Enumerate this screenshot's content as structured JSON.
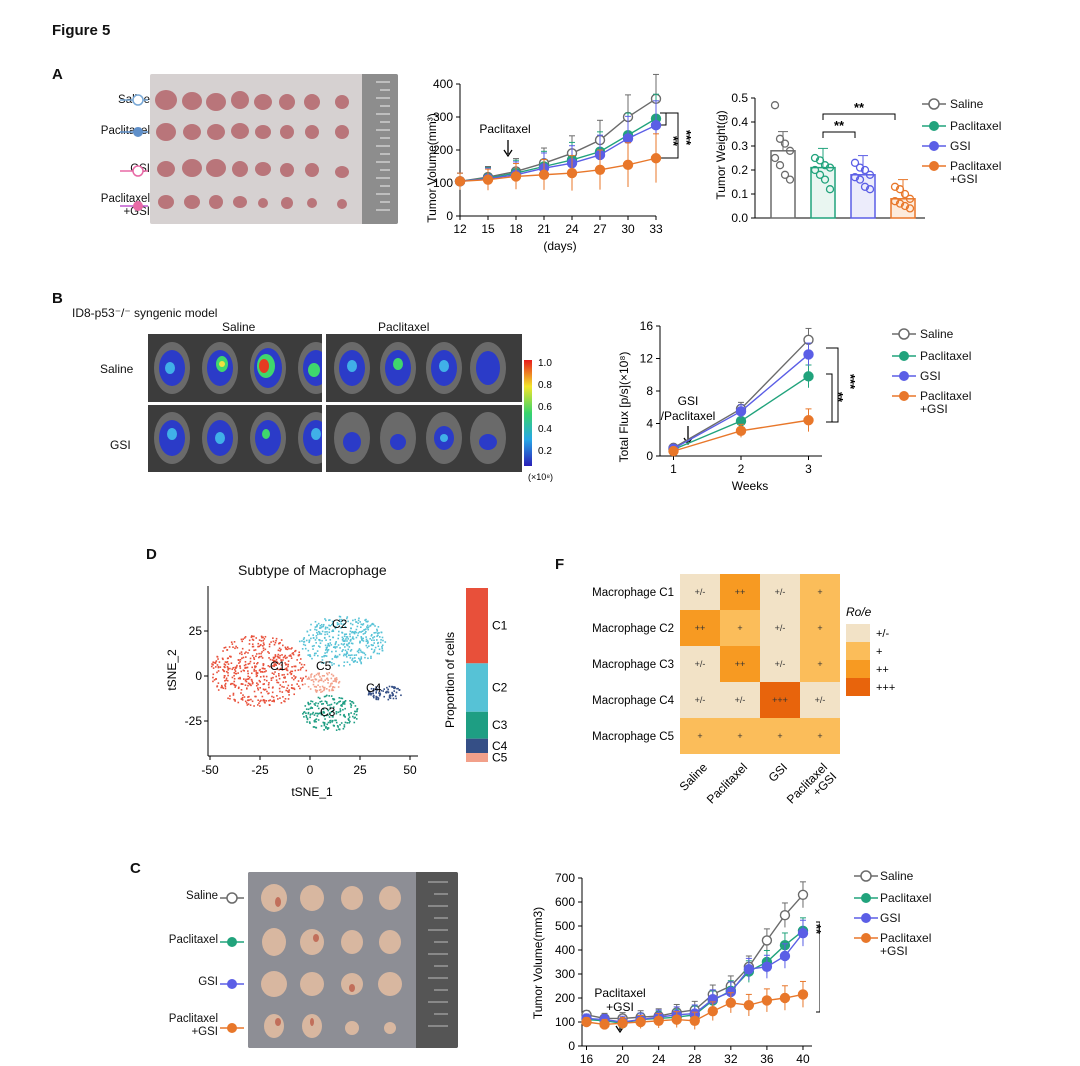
{
  "figure": {
    "title": "Figure 5"
  },
  "colors": {
    "saline": "#6b6b6b",
    "paclitaxel": "#21a37c",
    "gsi": "#5b5ee6",
    "combo": "#e8772a",
    "saline_A": "#79a8d6",
    "paclitaxel_A": "#5f8fc9",
    "gsi_A": "#e86aa6",
    "combo_A": "#c15ad0"
  },
  "panelA": {
    "label": "A",
    "photo_groups": [
      "Saline",
      "Paclitaxel",
      "GSI",
      "Paclitaxel\n+GSI"
    ],
    "line": {
      "ylabel": "Tumor Volume(mm³)",
      "xlabel": "(days)",
      "annotation": "Paclitaxel",
      "sig_inner": "**",
      "sig_outer": "***",
      "x_ticks": [
        "12",
        "15",
        "18",
        "21",
        "24",
        "27",
        "30",
        "33"
      ],
      "y_ticks": [
        "0",
        "100",
        "200",
        "300",
        "400"
      ]
    },
    "bar": {
      "ylabel": "Tumor Weight(g)",
      "y_ticks": [
        "0.0",
        "0.1",
        "0.2",
        "0.3",
        "0.4",
        "0.5"
      ],
      "sig1": "**",
      "sig2": "**"
    },
    "legend": [
      "Saline",
      "Paclitaxel",
      "GSI",
      "Paclitaxel\n+GSI"
    ]
  },
  "panelB": {
    "label": "B",
    "model": "ID8-p53⁻/⁻ syngenic model",
    "col_labels": [
      "Saline",
      "Paclitaxel"
    ],
    "row_labels": [
      "Saline",
      "GSI"
    ],
    "colorbar_ticks": [
      "1.0",
      "0.8",
      "0.6",
      "0.4",
      "0.2"
    ],
    "colorbar_unit": "(×10⁸)",
    "line": {
      "ylabel": "Total Flux [p/s](×10⁸)",
      "xlabel": "Weeks",
      "annotation_1": "GSI",
      "annotation_2": "/Paclitaxel",
      "x_ticks": [
        "1",
        "2",
        "3"
      ],
      "y_ticks": [
        "0",
        "4",
        "8",
        "12",
        "16"
      ],
      "sig_inner": "**",
      "sig_outer": "***"
    },
    "legend": [
      "Saline",
      "Paclitaxel",
      "GSI",
      "Paclitaxel\n+GSI"
    ]
  },
  "panelD": {
    "label": "D",
    "title": "Subtype of Macrophage",
    "xlabel": "tSNE_1",
    "ylabel": "tSNE_2",
    "x_ticks": [
      "-50",
      "-25",
      "0",
      "25",
      "50"
    ],
    "y_ticks": [
      "25",
      "0",
      "-25"
    ],
    "cluster_labels": [
      "C1",
      "C2",
      "C3",
      "C4",
      "C5"
    ],
    "proportion_label": "Proportion of cells",
    "proportion_legend": [
      "C1",
      "C2",
      "C3",
      "C4",
      "C5"
    ],
    "cluster_colors": [
      "#e8503a",
      "#56c2d6",
      "#1e9e83",
      "#354f86",
      "#f2a08a"
    ]
  },
  "panelF": {
    "label": "F",
    "rows": [
      "Macrophage C1",
      "Macrophage C2",
      "Macrophage C3",
      "Macrophage C4",
      "Macrophage C5"
    ],
    "cols": [
      "Saline",
      "Paclitaxel",
      "GSI",
      "Paclitaxel\n+GSI"
    ],
    "cells": [
      [
        "+/-",
        "++",
        "+/-",
        "+"
      ],
      [
        "++",
        "+",
        "+/-",
        "+"
      ],
      [
        "+/-",
        "++",
        "+/-",
        "+"
      ],
      [
        "+/-",
        "+/-",
        "+++",
        "+/-"
      ],
      [
        "+",
        "+",
        "+",
        "+"
      ]
    ],
    "legend_title": "Ro/e",
    "legend": [
      "+/-",
      "+",
      "++",
      "+++"
    ],
    "level_colors": {
      "+/-": "#f2e2c6",
      "+": "#fbbd5a",
      "++": "#f79a22",
      "+++": "#e8640c"
    }
  },
  "panelC": {
    "label": "C",
    "photo_groups": [
      "Saline",
      "Paclitaxel",
      "GSI",
      "Paclitaxel\n+GSI"
    ],
    "line": {
      "ylabel": "Tumor Volume(mm3)",
      "annotation_1": "Paclitaxel",
      "annotation_2": "+GSI",
      "x_ticks": [
        "16",
        "20",
        "24",
        "28",
        "32",
        "36",
        "40"
      ],
      "y_ticks": [
        "0",
        "100",
        "200",
        "300",
        "400",
        "500",
        "600",
        "700"
      ],
      "sig": "**"
    },
    "legend": [
      "Saline",
      "Paclitaxel",
      "GSI",
      "Paclitaxel\n+GSI"
    ]
  },
  "chart_data": [
    {
      "id": "A_volume",
      "type": "line",
      "xlabel": "(days)",
      "ylabel": "Tumor Volume(mm³)",
      "ylim": [
        0,
        400
      ],
      "x": [
        12,
        15,
        18,
        21,
        24,
        27,
        30,
        33
      ],
      "series": [
        {
          "name": "Saline",
          "values": [
            105,
            118,
            135,
            160,
            190,
            230,
            300,
            355
          ]
        },
        {
          "name": "Paclitaxel",
          "values": [
            105,
            115,
            130,
            150,
            170,
            195,
            245,
            295
          ]
        },
        {
          "name": "GSI",
          "values": [
            105,
            113,
            125,
            145,
            160,
            185,
            235,
            275
          ]
        },
        {
          "name": "Paclitaxel+GSI",
          "values": [
            105,
            110,
            120,
            125,
            130,
            140,
            155,
            175
          ]
        }
      ]
    },
    {
      "id": "A_weight",
      "type": "bar",
      "ylabel": "Tumor Weight(g)",
      "ylim": [
        0,
        0.5
      ],
      "categories": [
        "Saline",
        "Paclitaxel",
        "GSI",
        "Paclitaxel+GSI"
      ],
      "values": [
        0.28,
        0.21,
        0.18,
        0.08
      ],
      "points": [
        [
          0.47,
          0.33,
          0.31,
          0.28,
          0.25,
          0.22,
          0.18,
          0.16
        ],
        [
          0.25,
          0.24,
          0.22,
          0.21,
          0.2,
          0.18,
          0.16,
          0.12
        ],
        [
          0.23,
          0.21,
          0.2,
          0.18,
          0.17,
          0.16,
          0.13,
          0.12
        ],
        [
          0.13,
          0.12,
          0.1,
          0.08,
          0.07,
          0.06,
          0.05,
          0.04
        ]
      ]
    },
    {
      "id": "B_flux",
      "type": "line",
      "xlabel": "Weeks",
      "ylabel": "Total Flux [p/s](×10⁸)",
      "ylim": [
        0,
        16
      ],
      "x": [
        1,
        2,
        3
      ],
      "series": [
        {
          "name": "Saline",
          "values": [
            1,
            5.8,
            14.3
          ]
        },
        {
          "name": "Paclitaxel",
          "values": [
            0.8,
            4.3,
            9.8
          ]
        },
        {
          "name": "GSI",
          "values": [
            0.9,
            5.5,
            12.5
          ]
        },
        {
          "name": "Paclitaxel+GSI",
          "values": [
            0.6,
            3.1,
            4.4
          ]
        }
      ]
    },
    {
      "id": "D_proportion",
      "type": "bar",
      "categories": [
        "C1",
        "C2",
        "C3",
        "C4",
        "C5"
      ],
      "values": [
        0.42,
        0.27,
        0.15,
        0.08,
        0.05
      ]
    },
    {
      "id": "C_volume",
      "type": "line",
      "ylabel": "Tumor Volume(mm3)",
      "ylim": [
        0,
        700
      ],
      "x": [
        16,
        18,
        20,
        22,
        24,
        26,
        28,
        30,
        32,
        34,
        36,
        38,
        40
      ],
      "series": [
        {
          "name": "Saline",
          "values": [
            130,
            115,
            115,
            120,
            125,
            140,
            150,
            215,
            250,
            330,
            440,
            545,
            630
          ]
        },
        {
          "name": "Paclitaxel",
          "values": [
            110,
            105,
            95,
            110,
            115,
            120,
            130,
            190,
            230,
            310,
            350,
            420,
            480
          ]
        },
        {
          "name": "GSI",
          "values": [
            115,
            110,
            100,
            110,
            120,
            130,
            135,
            195,
            225,
            320,
            330,
            375,
            470
          ]
        },
        {
          "name": "Paclitaxel+GSI",
          "values": [
            100,
            90,
            95,
            100,
            105,
            110,
            105,
            145,
            180,
            170,
            190,
            200,
            215
          ]
        }
      ]
    }
  ]
}
